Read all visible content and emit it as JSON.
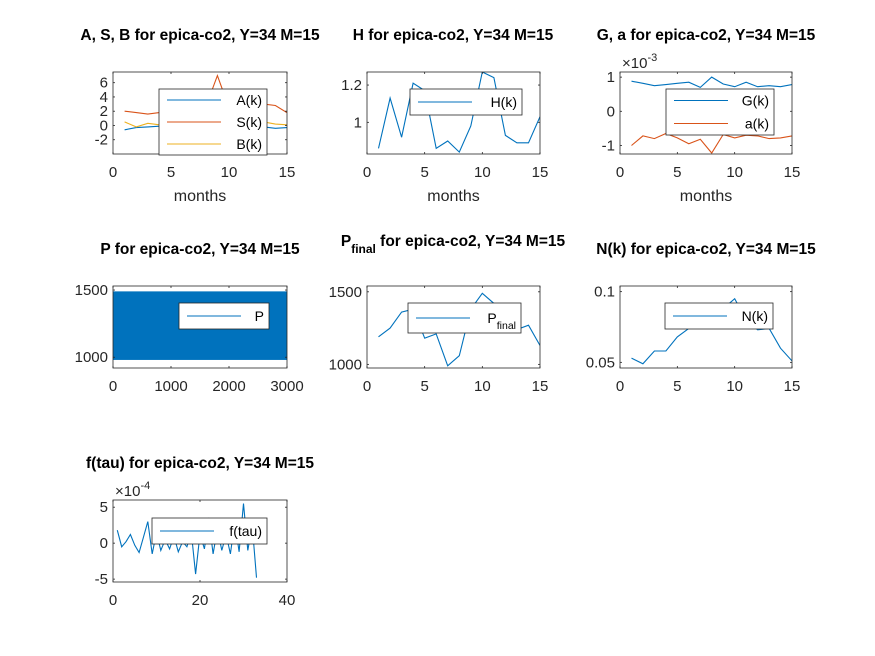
{
  "chart_data": [
    {
      "id": "abs",
      "type": "line",
      "title": "A, S, B for epica-co2, Y=34 M=15",
      "xlabel": "months",
      "xlim": [
        0,
        15
      ],
      "ylim": [
        -4,
        7.5
      ],
      "xticks": [
        0,
        5,
        10,
        15
      ],
      "yticks": [
        -2,
        0,
        2,
        4,
        6
      ],
      "ytick_labels": [
        "-2",
        "0",
        "2",
        "4",
        "6"
      ],
      "legend_position": "center",
      "series": [
        {
          "name": "A(k)",
          "color": "#0072BD",
          "x": [
            1,
            2,
            3,
            4,
            5,
            6,
            7,
            8,
            9,
            10,
            11,
            12,
            13,
            14,
            15
          ],
          "values": [
            -0.6,
            -0.3,
            -0.2,
            -0.1,
            0.3,
            0.5,
            0.2,
            0.4,
            0.8,
            0.3,
            0.2,
            0.1,
            -0.2,
            -0.4,
            -0.3
          ]
        },
        {
          "name": "S(k)",
          "color": "#D95319",
          "x": [
            1,
            2,
            3,
            4,
            5,
            6,
            7,
            8,
            9,
            10,
            11,
            12,
            13,
            14,
            15
          ],
          "values": [
            2.0,
            1.8,
            1.6,
            1.8,
            1.6,
            1.9,
            2.4,
            2.6,
            7.0,
            2.5,
            2.4,
            2.4,
            3.0,
            2.8,
            1.8
          ]
        },
        {
          "name": "B(k)",
          "color": "#EDB120",
          "x": [
            1,
            2,
            3,
            4,
            5,
            6,
            7,
            8,
            9,
            10,
            11,
            12,
            13,
            14,
            15
          ],
          "values": [
            0.5,
            -0.2,
            0.3,
            0.1,
            0.4,
            0.2,
            0.3,
            0.5,
            0.6,
            0.3,
            0.2,
            0.4,
            0.5,
            0.2,
            0.1
          ]
        }
      ]
    },
    {
      "id": "h",
      "type": "line",
      "title": "H for epica-co2, Y=34 M=15",
      "xlabel": "months",
      "xlim": [
        0,
        15
      ],
      "ylim": [
        0.83,
        1.27
      ],
      "xticks": [
        0,
        5,
        10,
        15
      ],
      "yticks": [
        1,
        1.2
      ],
      "ytick_labels": [
        "1",
        "1.2"
      ],
      "legend_position": "top",
      "series": [
        {
          "name": "H(k)",
          "color": "#0072BD",
          "x": [
            1,
            2,
            3,
            4,
            5,
            6,
            7,
            8,
            9,
            10,
            11,
            12,
            13,
            14,
            15
          ],
          "values": [
            0.86,
            1.13,
            0.92,
            1.21,
            1.17,
            0.86,
            0.9,
            0.84,
            0.98,
            1.27,
            1.24,
            0.93,
            0.89,
            0.89,
            1.03
          ]
        }
      ]
    },
    {
      "id": "ga",
      "type": "line",
      "title": "G, a for epica-co2, Y=34 M=15",
      "xlabel": "months",
      "xlim": [
        0,
        15
      ],
      "ylim": [
        -1.25,
        1.15
      ],
      "xticks": [
        0,
        5,
        10,
        15
      ],
      "yticks": [
        -1,
        0,
        1
      ],
      "ytick_labels": [
        "-1",
        "0",
        "1"
      ],
      "multiplier": "×10",
      "multiplier_exp": "-3",
      "legend_position": "center",
      "series": [
        {
          "name": "G(k)",
          "color": "#0072BD",
          "x": [
            1,
            2,
            3,
            4,
            5,
            6,
            7,
            8,
            9,
            10,
            11,
            12,
            13,
            14,
            15
          ],
          "values": [
            0.88,
            0.82,
            0.75,
            0.78,
            0.82,
            0.85,
            0.7,
            1.0,
            0.8,
            0.72,
            0.85,
            0.72,
            0.75,
            0.72,
            0.78
          ]
        },
        {
          "name": "a(k)",
          "color": "#D95319",
          "x": [
            1,
            2,
            3,
            4,
            5,
            6,
            7,
            8,
            9,
            10,
            11,
            12,
            13,
            14,
            15
          ],
          "values": [
            -1.0,
            -0.72,
            -0.8,
            -0.65,
            -0.78,
            -0.95,
            -0.82,
            -1.22,
            -0.68,
            -0.78,
            -0.7,
            -0.72,
            -0.8,
            -0.78,
            -0.72
          ]
        }
      ]
    },
    {
      "id": "p",
      "type": "line",
      "title": "P for epica-co2, Y=34 M=15",
      "xlabel": "",
      "xlim": [
        0,
        3000
      ],
      "ylim": [
        920,
        1530
      ],
      "xticks": [
        0,
        1000,
        2000,
        3000
      ],
      "yticks": [
        1000,
        1500
      ],
      "ytick_labels": [
        "1000",
        "1500"
      ],
      "legend_position": "center-right",
      "band_low": 980,
      "band_high": 1490,
      "band_x": [
        0,
        3000
      ],
      "series": [
        {
          "name": "P",
          "color": "#0072BD"
        }
      ]
    },
    {
      "id": "pfinal",
      "type": "line",
      "title": "P",
      "title_sub": "final",
      "title_rest": " for epica-co2, Y=34 M=15",
      "xlabel": "",
      "xlim": [
        0,
        15
      ],
      "ylim": [
        975,
        1540
      ],
      "xticks": [
        0,
        5,
        10,
        15
      ],
      "yticks": [
        1000,
        1500
      ],
      "ytick_labels": [
        "1000",
        "1500"
      ],
      "legend_position": "center",
      "series": [
        {
          "name": "P",
          "name_sub": "final",
          "color": "#0072BD",
          "x": [
            1,
            2,
            3,
            4,
            5,
            6,
            7,
            8,
            9,
            10,
            11,
            12,
            13,
            14,
            15
          ],
          "values": [
            1190,
            1250,
            1360,
            1380,
            1180,
            1210,
            990,
            1060,
            1380,
            1490,
            1420,
            1270,
            1240,
            1270,
            1130
          ]
        }
      ]
    },
    {
      "id": "n",
      "type": "line",
      "title": "N(k) for epica-co2, Y=34 M=15",
      "xlabel": "",
      "xlim": [
        0,
        15
      ],
      "ylim": [
        0.046,
        0.104
      ],
      "xticks": [
        0,
        5,
        10,
        15
      ],
      "yticks": [
        0.05,
        0.1
      ],
      "ytick_labels": [
        "0.05",
        "0.1"
      ],
      "legend_position": "center",
      "series": [
        {
          "name": "N(k)",
          "color": "#0072BD",
          "x": [
            1,
            2,
            3,
            4,
            5,
            6,
            7,
            8,
            9,
            10,
            11,
            12,
            13,
            14,
            15
          ],
          "values": [
            0.053,
            0.049,
            0.058,
            0.058,
            0.068,
            0.074,
            0.081,
            0.085,
            0.088,
            0.095,
            0.08,
            0.073,
            0.074,
            0.06,
            0.051
          ]
        }
      ]
    },
    {
      "id": "ftau",
      "type": "line",
      "title": "f(tau) for epica-co2, Y=34 M=15",
      "xlabel": "",
      "xlim": [
        0,
        40
      ],
      "ylim": [
        -5.4,
        6
      ],
      "xticks": [
        0,
        20,
        40
      ],
      "yticks": [
        -5,
        0,
        5
      ],
      "ytick_labels": [
        "-5",
        "0",
        "5"
      ],
      "multiplier": "×10",
      "multiplier_exp": "-4",
      "legend_position": "center-right",
      "series": [
        {
          "name": "f(tau)",
          "color": "#0072BD",
          "x": [
            1,
            2,
            3,
            4,
            5,
            6,
            7,
            8,
            9,
            10,
            11,
            12,
            13,
            14,
            15,
            16,
            17,
            18,
            19,
            20,
            21,
            22,
            23,
            24,
            25,
            26,
            27,
            28,
            29,
            30,
            31,
            32,
            33
          ],
          "values": [
            1.8,
            -0.5,
            0.2,
            1.2,
            -0.3,
            -1.3,
            0.8,
            3.0,
            -1.5,
            1.5,
            -1.0,
            0.5,
            -0.8,
            1.0,
            -1.2,
            0.2,
            -0.5,
            1.5,
            -4.3,
            1.3,
            -0.8,
            3.5,
            -1.5,
            2.0,
            -1.0,
            1.2,
            -1.5,
            3.0,
            -1.2,
            5.5,
            -1.0,
            2.5,
            -4.8
          ]
        }
      ]
    }
  ]
}
